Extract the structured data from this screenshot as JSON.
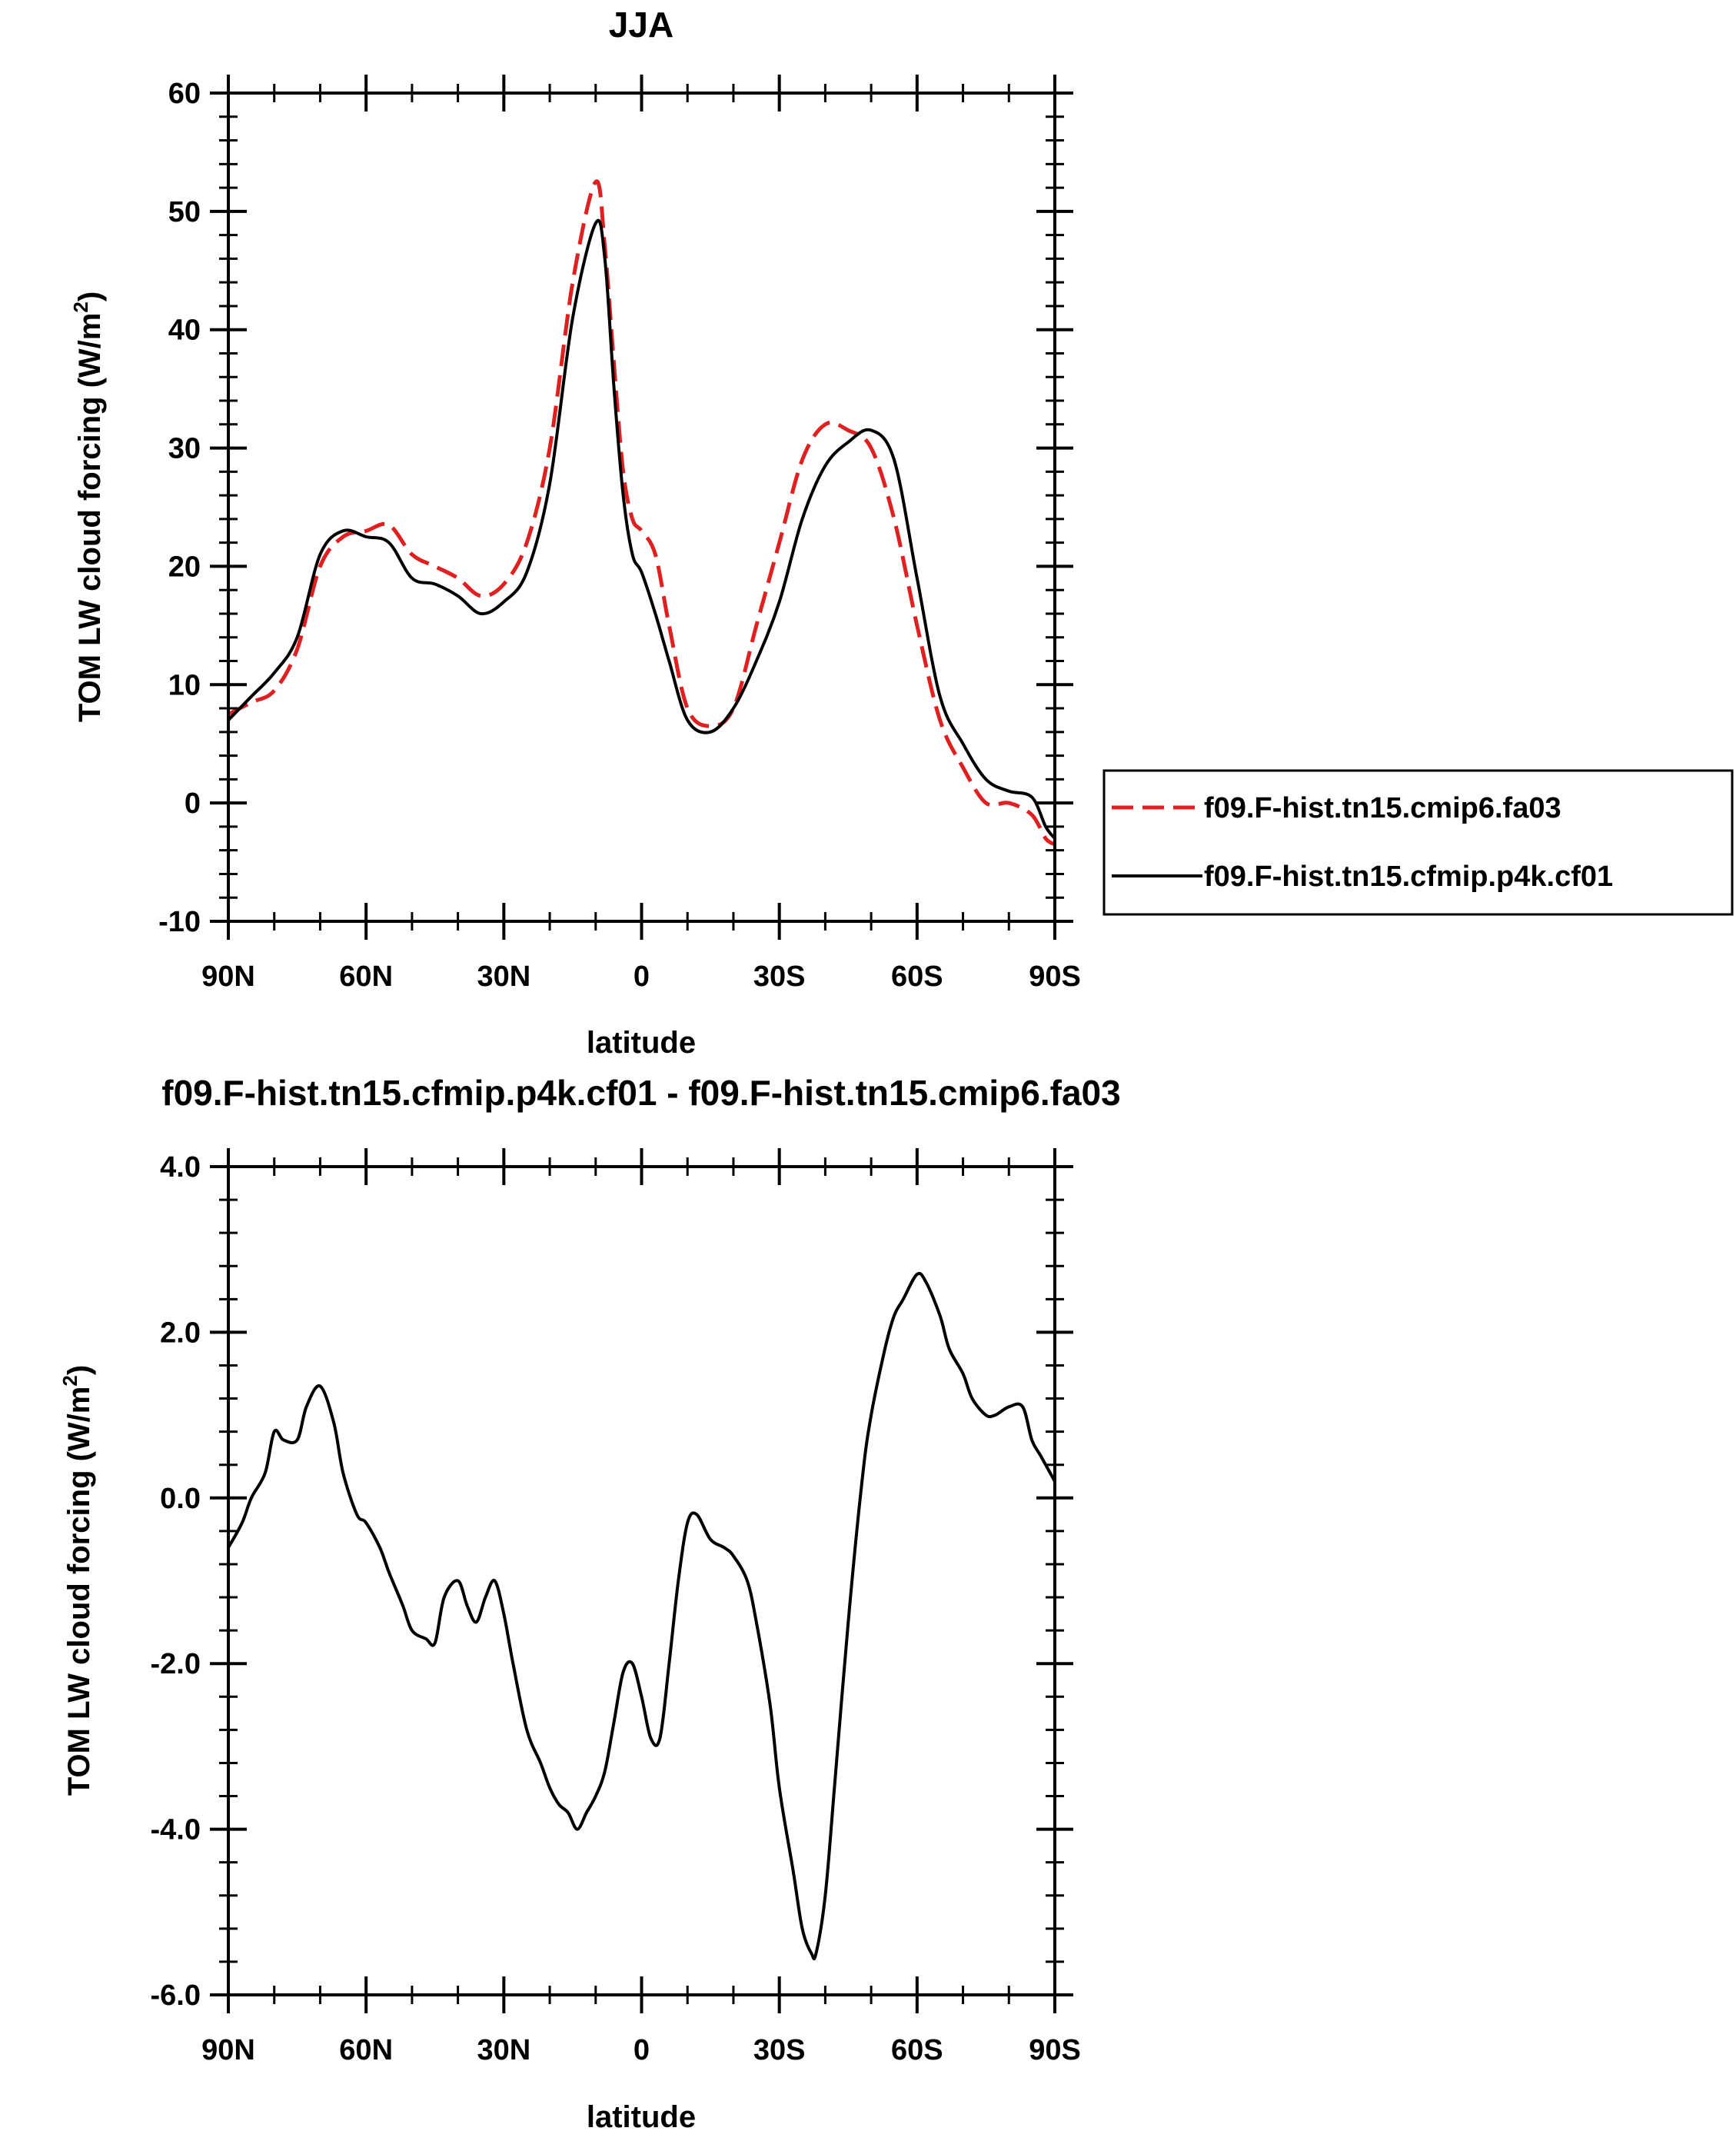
{
  "chart_data": [
    {
      "type": "line",
      "title": "JJA",
      "xlabel": "latitude",
      "ylabel": "TOM LW cloud forcing (W/m",
      "ylabel_sup": "2",
      "ylabel_close": ")",
      "xlim": [
        90,
        -90
      ],
      "ylim": [
        -10,
        60
      ],
      "yticks": [
        -10,
        0,
        10,
        20,
        30,
        40,
        50,
        60
      ],
      "ytick_labels": [
        "-10",
        "0",
        "10",
        "20",
        "30",
        "40",
        "50",
        "60"
      ],
      "xticks": [
        90,
        60,
        30,
        0,
        -30,
        -60,
        -90
      ],
      "xtick_labels": [
        "90N",
        "60N",
        "30N",
        "0",
        "30S",
        "60S",
        "90S"
      ],
      "grid": false,
      "legend_position": "right",
      "series": [
        {
          "name": "f09.F-hist.tn15.cmip6.fa03",
          "color": "#e02020",
          "style": "dashed",
          "x": [
            90,
            85,
            80,
            75,
            70,
            65,
            60,
            55,
            50,
            45,
            40,
            35,
            30,
            25,
            20,
            15,
            10,
            8,
            6,
            4,
            2,
            0,
            -3,
            -6,
            -10,
            -15,
            -20,
            -25,
            -30,
            -35,
            -40,
            -45,
            -50,
            -55,
            -60,
            -65,
            -70,
            -75,
            -80,
            -85,
            -88,
            -90
          ],
          "y": [
            7.5,
            8.5,
            9.5,
            13,
            20,
            22.5,
            23,
            23.5,
            21,
            20,
            19,
            17.5,
            18.5,
            22,
            30,
            44,
            52.5,
            47,
            37,
            28,
            24,
            23,
            21,
            15,
            8,
            6.5,
            8,
            15,
            22,
            29,
            32,
            31.5,
            30,
            24,
            15,
            7,
            3,
            0,
            0,
            -1,
            -3,
            -3.5
          ]
        },
        {
          "name": "f09.F-hist.tn15.cfmip.p4k.cf01",
          "color": "#000000",
          "style": "solid",
          "x": [
            90,
            85,
            80,
            75,
            70,
            65,
            60,
            55,
            50,
            45,
            40,
            35,
            30,
            25,
            20,
            15,
            10,
            8,
            6,
            4,
            2,
            0,
            -3,
            -6,
            -10,
            -15,
            -20,
            -25,
            -30,
            -35,
            -40,
            -45,
            -50,
            -55,
            -60,
            -65,
            -70,
            -75,
            -80,
            -85,
            -88,
            -90
          ],
          "y": [
            7,
            9,
            11,
            14,
            21,
            23,
            22.5,
            22,
            19,
            18.5,
            17.5,
            16,
            17,
            19.5,
            27,
            41,
            49,
            46,
            35,
            26,
            21,
            19.5,
            16,
            12,
            7,
            6,
            8,
            12,
            17,
            24,
            28.5,
            30.5,
            31.5,
            29,
            19,
            9,
            5,
            2,
            1,
            0.5,
            -2,
            -3
          ]
        }
      ]
    },
    {
      "type": "line",
      "title": "f09.F-hist.tn15.cfmip.p4k.cf01 - f09.F-hist.tn15.cmip6.fa03",
      "xlabel": "latitude",
      "ylabel": "TOM LW cloud forcing (W/m",
      "ylabel_sup": "2",
      "ylabel_close": ")",
      "xlim": [
        90,
        -90
      ],
      "ylim": [
        -6,
        4
      ],
      "yticks": [
        -6,
        -4,
        -2,
        0,
        2,
        4
      ],
      "ytick_labels": [
        "-6.0",
        "-4.0",
        "-2.0",
        "0.0",
        "2.0",
        "4.0"
      ],
      "xticks": [
        90,
        60,
        30,
        0,
        -30,
        -60,
        -90
      ],
      "xtick_labels": [
        "90N",
        "60N",
        "30N",
        "0",
        "30S",
        "60S",
        "90S"
      ],
      "grid": false,
      "series": [
        {
          "color": "#000000",
          "style": "solid",
          "x": [
            90,
            87,
            85,
            82,
            80,
            78,
            75,
            73,
            70,
            67,
            65,
            62,
            60,
            57,
            55,
            52,
            50,
            47,
            45,
            43,
            40,
            38,
            36,
            34,
            32,
            30,
            28,
            25,
            22,
            20,
            18,
            16,
            14,
            12,
            10,
            8,
            6,
            4,
            2,
            0,
            -2,
            -4,
            -6,
            -8,
            -10,
            -12,
            -15,
            -18,
            -20,
            -23,
            -25,
            -28,
            -30,
            -33,
            -35,
            -37,
            -38,
            -40,
            -42,
            -45,
            -48,
            -50,
            -53,
            -55,
            -57,
            -60,
            -62,
            -65,
            -67,
            -70,
            -72,
            -75,
            -77,
            -80,
            -83,
            -85,
            -87,
            -90
          ],
          "y": [
            -0.6,
            -0.3,
            0,
            0.3,
            0.8,
            0.7,
            0.7,
            1.1,
            1.35,
            0.9,
            0.3,
            -0.2,
            -0.3,
            -0.6,
            -0.9,
            -1.3,
            -1.6,
            -1.7,
            -1.75,
            -1.2,
            -1.0,
            -1.3,
            -1.5,
            -1.2,
            -1.0,
            -1.4,
            -2.0,
            -2.8,
            -3.2,
            -3.5,
            -3.7,
            -3.8,
            -4.0,
            -3.8,
            -3.6,
            -3.3,
            -2.7,
            -2.1,
            -2.0,
            -2.4,
            -2.9,
            -2.9,
            -2.0,
            -1.0,
            -0.3,
            -0.2,
            -0.5,
            -0.6,
            -0.7,
            -1.0,
            -1.5,
            -2.5,
            -3.5,
            -4.5,
            -5.2,
            -5.5,
            -5.5,
            -4.8,
            -3.5,
            -1.5,
            0.2,
            1.0,
            1.8,
            2.2,
            2.4,
            2.7,
            2.6,
            2.2,
            1.8,
            1.5,
            1.2,
            1.0,
            1.0,
            1.1,
            1.1,
            0.7,
            0.5,
            0.2
          ]
        }
      ]
    }
  ]
}
